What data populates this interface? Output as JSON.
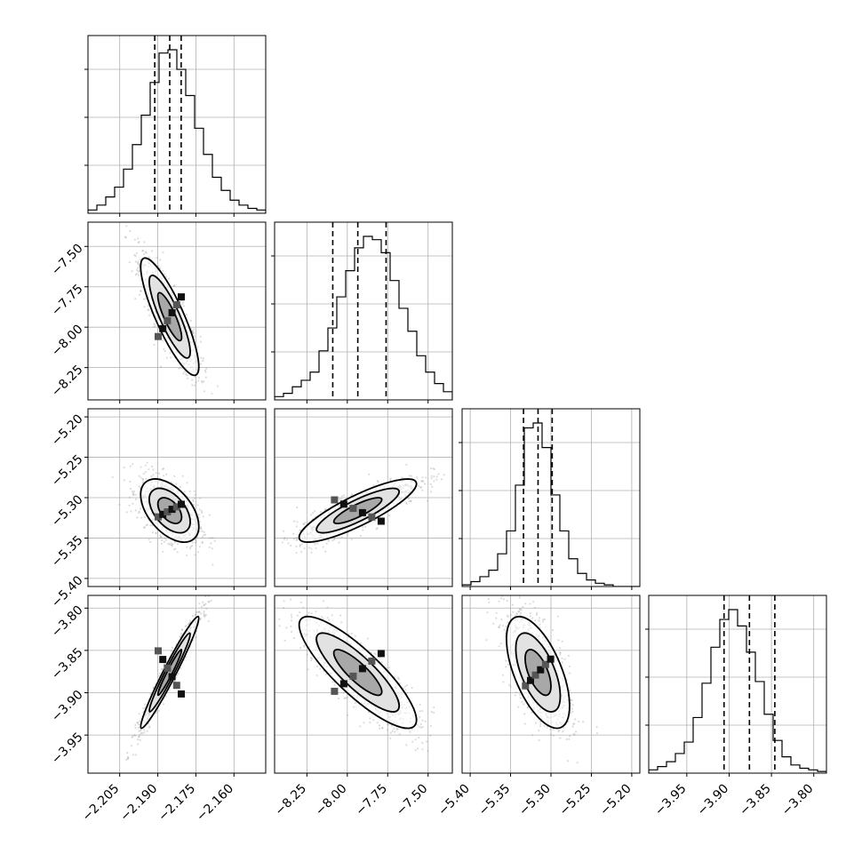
{
  "chart_data": {
    "type": "corner",
    "grid": true,
    "quantile_lines": "dashed",
    "parameters": [
      {
        "range": [
          -2.2175,
          -2.1475
        ],
        "ticks": [
          -2.205,
          -2.19,
          -2.175,
          -2.16
        ],
        "tick_labels": [
          "−2.205",
          "−2.190",
          "−2.175",
          "−2.160"
        ],
        "quantiles": [
          -2.1912,
          -2.1853,
          -2.1808
        ],
        "hist": [
          0.02,
          0.05,
          0.1,
          0.16,
          0.27,
          0.42,
          0.6,
          0.8,
          0.98,
          1.0,
          0.88,
          0.72,
          0.52,
          0.36,
          0.22,
          0.14,
          0.08,
          0.05,
          0.03,
          0.02
        ]
      },
      {
        "range": [
          -8.45,
          -7.35
        ],
        "ticks": [
          -8.25,
          -8.0,
          -7.75,
          -7.5
        ],
        "tick_labels": [
          "−8.25",
          "−8.00",
          "−7.75",
          "−7.50"
        ],
        "quantiles": [
          -8.09,
          -7.935,
          -7.76
        ],
        "hist": [
          0.02,
          0.04,
          0.08,
          0.12,
          0.17,
          0.3,
          0.44,
          0.63,
          0.79,
          0.93,
          1.0,
          0.98,
          0.9,
          0.73,
          0.56,
          0.42,
          0.27,
          0.17,
          0.1,
          0.05
        ]
      },
      {
        "range": [
          -5.41,
          -5.19
        ],
        "ticks": [
          -5.4,
          -5.35,
          -5.3,
          -5.25,
          -5.2
        ],
        "tick_labels": [
          "−5.40",
          "−5.35",
          "−5.30",
          "−5.25",
          "−5.20"
        ],
        "quantiles": [
          -5.334,
          -5.316,
          -5.2985
        ],
        "hist": [
          0.01,
          0.03,
          0.06,
          0.1,
          0.2,
          0.34,
          0.62,
          0.97,
          1.0,
          0.85,
          0.56,
          0.34,
          0.17,
          0.08,
          0.04,
          0.02,
          0.01,
          0.0,
          0.0,
          0.0
        ]
      },
      {
        "range": [
          -3.995,
          -3.785
        ],
        "ticks": [
          -3.95,
          -3.9,
          -3.85,
          -3.8
        ],
        "tick_labels": [
          "−3.95",
          "−3.90",
          "−3.85",
          "−3.80"
        ],
        "quantiles": [
          -3.906,
          -3.876,
          -3.846
        ],
        "hist": [
          0.02,
          0.04,
          0.07,
          0.12,
          0.19,
          0.34,
          0.55,
          0.77,
          0.94,
          1.0,
          0.9,
          0.74,
          0.56,
          0.36,
          0.2,
          0.1,
          0.05,
          0.03,
          0.02,
          0.01
        ]
      }
    ],
    "correlations": [
      [
        1.0,
        -0.85,
        -0.5,
        0.97
      ],
      [
        -0.85,
        1.0,
        0.85,
        -0.85
      ],
      [
        -0.5,
        0.85,
        1.0,
        -0.6
      ],
      [
        0.97,
        -0.85,
        -0.6,
        1.0
      ]
    ]
  }
}
